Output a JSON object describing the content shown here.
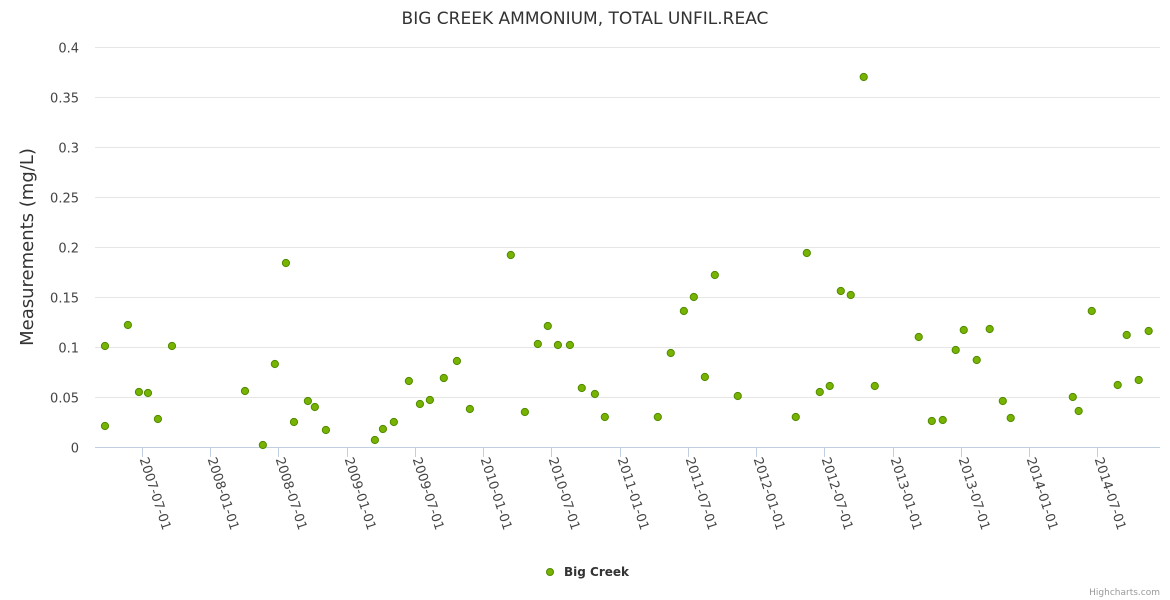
{
  "chart_data": {
    "type": "scatter",
    "title": "BIG CREEK AMMONIUM, TOTAL UNFIL.REAC",
    "xlabel": "",
    "ylabel": "Measurements (mg/L)",
    "x_units": "decimal year",
    "xlim": [
      2007.156,
      2014.96
    ],
    "ylim": [
      0,
      0.4
    ],
    "y_ticks": [
      "0",
      "0.05",
      "0.1",
      "0.15",
      "0.2",
      "0.25",
      "0.3",
      "0.35",
      "0.4"
    ],
    "y_tick_values": [
      0,
      0.05,
      0.1,
      0.15,
      0.2,
      0.25,
      0.3,
      0.35,
      0.4
    ],
    "x_ticks": [
      "2007-07-01",
      "2008-01-01",
      "2008-07-01",
      "2009-01-01",
      "2009-07-01",
      "2010-01-01",
      "2010-07-01",
      "2011-01-01",
      "2011-07-01",
      "2012-01-01",
      "2012-07-01",
      "2013-01-01",
      "2013-07-01",
      "2014-01-01",
      "2014-07-01"
    ],
    "x_tick_values": [
      2007.5,
      2008.0,
      2008.5,
      2009.0,
      2009.5,
      2010.0,
      2010.5,
      2011.0,
      2011.5,
      2012.0,
      2012.5,
      2013.0,
      2013.5,
      2014.0,
      2014.5
    ],
    "grid": true,
    "legend_position": "bottom-center",
    "series": [
      {
        "name": "Big Creek",
        "color": "#77b300",
        "points": [
          [
            2007.229,
            0.101
          ],
          [
            2007.229,
            0.021
          ],
          [
            2007.397,
            0.122
          ],
          [
            2007.478,
            0.055
          ],
          [
            2007.544,
            0.054
          ],
          [
            2007.617,
            0.028
          ],
          [
            2007.72,
            0.101
          ],
          [
            2008.255,
            0.056
          ],
          [
            2008.386,
            0.002
          ],
          [
            2008.474,
            0.083
          ],
          [
            2008.555,
            0.184
          ],
          [
            2008.614,
            0.025
          ],
          [
            2008.716,
            0.046
          ],
          [
            2008.767,
            0.04
          ],
          [
            2008.848,
            0.017
          ],
          [
            2009.207,
            0.007
          ],
          [
            2009.266,
            0.018
          ],
          [
            2009.346,
            0.025
          ],
          [
            2009.456,
            0.066
          ],
          [
            2009.537,
            0.043
          ],
          [
            2009.61,
            0.047
          ],
          [
            2009.712,
            0.069
          ],
          [
            2009.808,
            0.086
          ],
          [
            2009.903,
            0.038
          ],
          [
            2010.203,
            0.192
          ],
          [
            2010.306,
            0.035
          ],
          [
            2010.401,
            0.103
          ],
          [
            2010.474,
            0.121
          ],
          [
            2010.548,
            0.102
          ],
          [
            2010.636,
            0.102
          ],
          [
            2010.723,
            0.059
          ],
          [
            2010.819,
            0.053
          ],
          [
            2010.892,
            0.03
          ],
          [
            2011.28,
            0.03
          ],
          [
            2011.375,
            0.094
          ],
          [
            2011.471,
            0.136
          ],
          [
            2011.544,
            0.15
          ],
          [
            2011.625,
            0.07
          ],
          [
            2011.698,
            0.172
          ],
          [
            2011.866,
            0.051
          ],
          [
            2012.291,
            0.03
          ],
          [
            2012.372,
            0.194
          ],
          [
            2012.467,
            0.055
          ],
          [
            2012.54,
            0.061
          ],
          [
            2012.621,
            0.156
          ],
          [
            2012.694,
            0.152
          ],
          [
            2012.789,
            0.37
          ],
          [
            2012.87,
            0.061
          ],
          [
            2013.192,
            0.11
          ],
          [
            2013.288,
            0.026
          ],
          [
            2013.368,
            0.027
          ],
          [
            2013.463,
            0.097
          ],
          [
            2013.522,
            0.117
          ],
          [
            2013.617,
            0.087
          ],
          [
            2013.712,
            0.118
          ],
          [
            2013.808,
            0.046
          ],
          [
            2013.866,
            0.029
          ],
          [
            2014.321,
            0.05
          ],
          [
            2014.364,
            0.036
          ],
          [
            2014.46,
            0.136
          ],
          [
            2014.65,
            0.062
          ],
          [
            2014.716,
            0.112
          ],
          [
            2014.804,
            0.067
          ],
          [
            2014.877,
            0.116
          ]
        ]
      }
    ]
  },
  "credits": "Highcharts.com"
}
